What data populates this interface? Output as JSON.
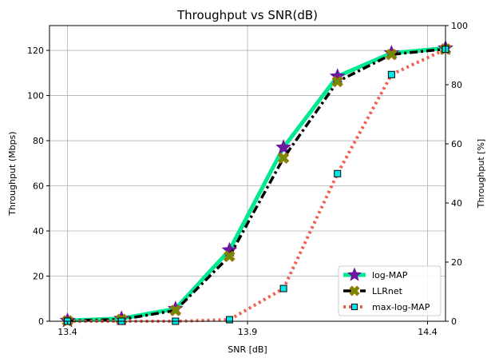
{
  "chart_data": {
    "type": "line",
    "title": "Throughput vs SNR(dB)",
    "xlabel": "SNR [dB]",
    "ylabel": "Throughput (Mbps)",
    "y2label": "Throughput [%]",
    "xlim": [
      13.35,
      14.45
    ],
    "ylim": [
      0,
      131
    ],
    "y2lim": [
      0,
      100
    ],
    "xticks": [
      13.4,
      13.9,
      14.4
    ],
    "xtick_labels": [
      "13.4",
      "13.9",
      "14.4"
    ],
    "yticks": [
      0,
      20,
      40,
      60,
      80,
      100,
      120
    ],
    "y2ticks": [
      0,
      20,
      40,
      60,
      80,
      100
    ],
    "grid": true,
    "legend_position": "lower-right",
    "x": [
      13.4,
      13.55,
      13.7,
      13.85,
      14.0,
      14.15,
      14.3,
      14.45
    ],
    "series": [
      {
        "name": "log-MAP",
        "values": [
          0.3,
          1.2,
          5.5,
          31.5,
          77.0,
          108.5,
          118.8,
          121.0
        ],
        "color": "#00e890",
        "marker_color": "#6a1b9a",
        "marker_edge": "#6a0fa8",
        "style": "solid",
        "marker": "star"
      },
      {
        "name": "LLRnet",
        "values": [
          0.2,
          0.8,
          4.8,
          28.8,
          72.3,
          106.2,
          118.2,
          120.6
        ],
        "color": "#000000",
        "marker_color": "#6b8e00",
        "marker_edge": "#b06d00",
        "style": "dashdot",
        "marker": "x"
      },
      {
        "name": "max-log-MAP",
        "values": [
          0.0,
          0.0,
          0.0,
          0.7,
          14.5,
          65.4,
          109.3,
          120.5
        ],
        "color": "#f06050",
        "marker_color": "#00e8e8",
        "marker_edge": "#000000",
        "style": "dotted",
        "marker": "square"
      }
    ]
  }
}
